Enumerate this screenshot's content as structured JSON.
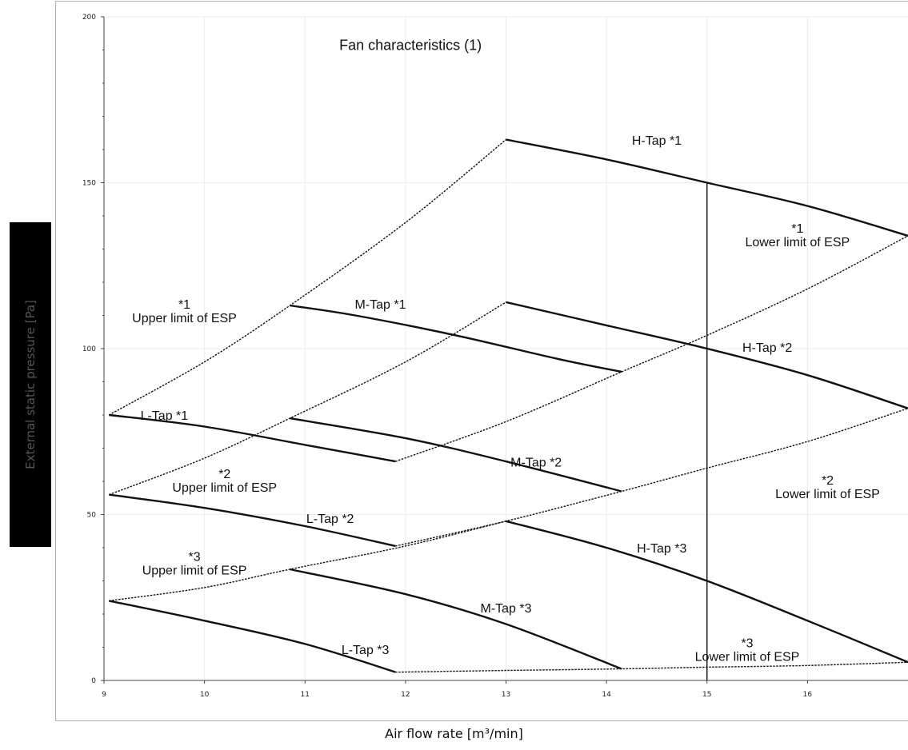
{
  "chart_data": {
    "type": "line",
    "title": "Fan characteristics (1)",
    "xlabel": "Air flow rate [m³/min]",
    "ylabel": "External static pressure [Pa]",
    "xlim": [
      9,
      17
    ],
    "ylim": [
      0,
      200
    ],
    "xticks": [
      9,
      10,
      11,
      12,
      13,
      14,
      15,
      16
    ],
    "yticks": [
      0,
      50,
      100,
      150,
      200
    ],
    "grid": true,
    "vertical_marker_x": 15,
    "series": [
      {
        "name": "H-Tap *1",
        "style": "solid",
        "x": [
          13,
          14,
          15,
          16,
          17
        ],
        "y": [
          163,
          157,
          150,
          143,
          134
        ]
      },
      {
        "name": "M-Tap *1",
        "style": "solid",
        "x": [
          10.85,
          11.5,
          12.5,
          13.5,
          14.15
        ],
        "y": [
          113,
          110,
          104,
          97,
          93
        ]
      },
      {
        "name": "L-Tap *1",
        "style": "solid",
        "x": [
          9.05,
          10,
          11,
          11.9
        ],
        "y": [
          80,
          76.5,
          71,
          66
        ]
      },
      {
        "name": "H-Tap *2",
        "style": "solid",
        "x": [
          13,
          14,
          15,
          16,
          17
        ],
        "y": [
          114,
          107,
          100,
          92,
          82
        ]
      },
      {
        "name": "M-Tap *2",
        "style": "solid",
        "x": [
          10.85,
          12,
          13,
          14.15
        ],
        "y": [
          79,
          73,
          66,
          57
        ]
      },
      {
        "name": "L-Tap *2",
        "style": "solid",
        "x": [
          9.05,
          10,
          11,
          11.9
        ],
        "y": [
          56,
          52,
          46.5,
          40.5
        ]
      },
      {
        "name": "H-Tap *3",
        "style": "solid",
        "x": [
          13,
          14,
          15,
          16,
          17
        ],
        "y": [
          48,
          40,
          30,
          18,
          5.5
        ]
      },
      {
        "name": "M-Tap *3",
        "style": "solid",
        "x": [
          10.85,
          12,
          13,
          14.15
        ],
        "y": [
          33.5,
          26,
          17,
          3.5
        ]
      },
      {
        "name": "L-Tap *3",
        "style": "solid",
        "x": [
          9.05,
          10,
          11,
          11.9
        ],
        "y": [
          24,
          18,
          11,
          2.5
        ]
      },
      {
        "name": "*1 Upper limit of ESP",
        "style": "dotted",
        "x": [
          9.05,
          10,
          10.85,
          12,
          13
        ],
        "y": [
          80,
          96,
          113,
          138,
          163
        ]
      },
      {
        "name": "*2 Upper limit of ESP",
        "style": "dotted",
        "x": [
          9.05,
          10,
          10.85,
          12,
          13
        ],
        "y": [
          56,
          67,
          79,
          96,
          114
        ]
      },
      {
        "name": "*3 Upper limit of ESP",
        "style": "dotted",
        "x": [
          9.05,
          10,
          10.85,
          12,
          13
        ],
        "y": [
          24,
          28,
          33.5,
          40.5,
          48
        ]
      },
      {
        "name": "*1 Lower limit of ESP",
        "style": "dotted",
        "x": [
          11.9,
          13,
          14.15,
          15,
          16,
          17
        ],
        "y": [
          66,
          78,
          93,
          104,
          118,
          134
        ]
      },
      {
        "name": "*2 Lower limit of ESP",
        "style": "dotted",
        "x": [
          11.9,
          13,
          14.15,
          15,
          16,
          17
        ],
        "y": [
          40.5,
          48,
          57,
          64,
          72,
          82
        ]
      },
      {
        "name": "*3 Lower limit of ESP",
        "style": "dotted",
        "x": [
          11.9,
          13,
          14.15,
          15,
          16,
          17
        ],
        "y": [
          2.5,
          3,
          3.5,
          4,
          4.5,
          5.5
        ]
      }
    ],
    "annotations": [
      {
        "lines": [
          "Fan characteristics (1)"
        ],
        "x": 12.05,
        "y": 190,
        "size": 18
      },
      {
        "lines": [
          "H-Tap *1"
        ],
        "x": 14.5,
        "y": 161.5,
        "size": 16
      },
      {
        "lines": [
          "M-Tap *1"
        ],
        "x": 11.75,
        "y": 112,
        "size": 16
      },
      {
        "lines": [
          "L-Tap *1"
        ],
        "x": 9.6,
        "y": 78.5,
        "size": 16
      },
      {
        "lines": [
          "H-Tap *2"
        ],
        "x": 15.6,
        "y": 99,
        "size": 16
      },
      {
        "lines": [
          "M-Tap *2"
        ],
        "x": 13.3,
        "y": 64.5,
        "size": 16
      },
      {
        "lines": [
          "L-Tap *2"
        ],
        "x": 11.25,
        "y": 47.5,
        "size": 16
      },
      {
        "lines": [
          "H-Tap *3"
        ],
        "x": 14.55,
        "y": 38.5,
        "size": 16
      },
      {
        "lines": [
          "M-Tap *3"
        ],
        "x": 13,
        "y": 20.5,
        "size": 16
      },
      {
        "lines": [
          "L-Tap *3"
        ],
        "x": 11.6,
        "y": 8,
        "size": 16
      },
      {
        "lines": [
          "*1",
          "Upper limit of ESP"
        ],
        "x": 9.8,
        "y": 112,
        "size": 16
      },
      {
        "lines": [
          "*2",
          "Upper limit of ESP"
        ],
        "x": 10.2,
        "y": 61,
        "size": 16
      },
      {
        "lines": [
          "*3",
          "Upper limit of ESP"
        ],
        "x": 9.9,
        "y": 36,
        "size": 16
      },
      {
        "lines": [
          "*1",
          "Lower limit of ESP"
        ],
        "x": 15.9,
        "y": 135,
        "size": 16
      },
      {
        "lines": [
          "*2",
          "Lower limit of ESP"
        ],
        "x": 16.2,
        "y": 59,
        "size": 16
      },
      {
        "lines": [
          "*3",
          "Lower limit of ESP"
        ],
        "x": 15.4,
        "y": 10,
        "size": 16
      }
    ]
  }
}
